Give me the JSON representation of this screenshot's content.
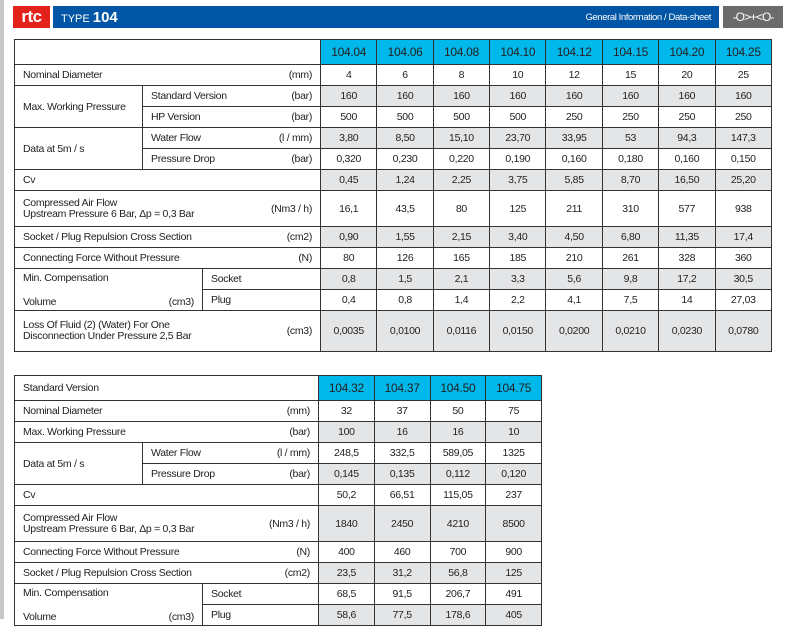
{
  "header": {
    "logo": "rtc",
    "type_label": "TYPE",
    "type_number": "104",
    "section": "General Information / Data-sheet",
    "icon": "coupling-icon",
    "icon_glyph": "-O>+<O-"
  },
  "colors": {
    "brand_blue": "#0055a5",
    "logo_red": "#e3221b",
    "header_cyan": "#00b8ea",
    "shade": "#e4e5e7"
  },
  "table1": {
    "title": "",
    "columns": [
      "104.04",
      "104.06",
      "104.08",
      "104.10",
      "104.12",
      "104.15",
      "104.20",
      "104.25"
    ],
    "rows": [
      {
        "label": "Nominal Diameter",
        "unit": "(mm)",
        "values": [
          "4",
          "6",
          "8",
          "10",
          "12",
          "15",
          "20",
          "25"
        ],
        "shaded": false
      },
      {
        "group": "Max. Working Pressure",
        "sub": "Standard Version",
        "unit": "(bar)",
        "values": [
          "160",
          "160",
          "160",
          "160",
          "160",
          "160",
          "160",
          "160"
        ],
        "shaded": true
      },
      {
        "group": "Max. Working Pressure",
        "sub": "HP Version",
        "unit": "(bar)",
        "values": [
          "500",
          "500",
          "500",
          "500",
          "250",
          "250",
          "250",
          "250"
        ],
        "shaded": false
      },
      {
        "group": "Data at 5m / s",
        "sub": "Water Flow",
        "unit": "(l / mm)",
        "values": [
          "3,80",
          "8,50",
          "15,10",
          "23,70",
          "33,95",
          "53",
          "94,3",
          "147,3"
        ],
        "shaded": true
      },
      {
        "group": "Data at 5m / s",
        "sub": "Pressure Drop",
        "unit": "(bar)",
        "values": [
          "0,320",
          "0,230",
          "0,220",
          "0,190",
          "0,160",
          "0,180",
          "0,160",
          "0,150"
        ],
        "shaded": false
      },
      {
        "label": "Cv",
        "unit": "",
        "values": [
          "0,45",
          "1,24",
          "2,25",
          "3,75",
          "5,85",
          "8,70",
          "16,50",
          "25,20"
        ],
        "shaded": true
      },
      {
        "label": "Compressed Air Flow",
        "label2": "Upstream Pressure 6 Bar, Δp = 0,3 Bar",
        "unit": "(Nm3 / h)",
        "values": [
          "16,1",
          "43,5",
          "80",
          "125",
          "211",
          "310",
          "577",
          "938"
        ],
        "shaded": false,
        "tall": true
      },
      {
        "label": "Socket / Plug Repulsion Cross Section",
        "unit": "(cm2)",
        "values": [
          "0,90",
          "1,55",
          "2,15",
          "3,40",
          "4,50",
          "6,80",
          "11,35",
          "17,4"
        ],
        "shaded": true
      },
      {
        "label": "Connecting Force Without Pressure",
        "unit": "(N)",
        "values": [
          "80",
          "126",
          "165",
          "185",
          "210",
          "261",
          "328",
          "360"
        ],
        "shaded": false
      },
      {
        "wide": "Min. Compensation",
        "wide2": "Volume",
        "unit": "(cm3)",
        "sub": "Socket",
        "values": [
          "0,8",
          "1,5",
          "2,1",
          "3,3",
          "5,6",
          "9,8",
          "17,2",
          "30,5"
        ],
        "shaded": true
      },
      {
        "wide": "Min. Compensation",
        "wide2": "Volume",
        "unit": "(cm3)",
        "sub": "Plug",
        "values": [
          "0,4",
          "0,8",
          "1,4",
          "2,2",
          "4,1",
          "7,5",
          "14",
          "27,03"
        ],
        "shaded": false
      },
      {
        "label": "Loss Of Fluid (2) (Water) For One",
        "label2": "Disconnection Under Pressure 2,5 Bar",
        "unit": "(cm3)",
        "values": [
          "0,0035",
          "0,0100",
          "0,0116",
          "0,0150",
          "0,0200",
          "0,0210",
          "0,0230",
          "0,0780"
        ],
        "shaded": true,
        "tall2": true
      }
    ]
  },
  "table2": {
    "title": "Standard Version",
    "columns": [
      "104.32",
      "104.37",
      "104.50",
      "104.75"
    ],
    "rows": [
      {
        "label": "Nominal Diameter",
        "unit": "(mm)",
        "values": [
          "32",
          "37",
          "50",
          "75"
        ],
        "shaded": false
      },
      {
        "label": "Max. Working Pressure",
        "unit": "(bar)",
        "values": [
          "100",
          "16",
          "16",
          "10"
        ],
        "shaded": true
      },
      {
        "group": "Data at 5m / s",
        "sub": "Water Flow",
        "unit": "(l / mm)",
        "values": [
          "248,5",
          "332,5",
          "589,05",
          "1325"
        ],
        "shaded": false
      },
      {
        "group": "Data at 5m / s",
        "sub": "Pressure Drop",
        "unit": "(bar)",
        "values": [
          "0,145",
          "0,135",
          "0,112",
          "0,120"
        ],
        "shaded": true
      },
      {
        "label": "Cv",
        "unit": "",
        "values": [
          "50,2",
          "66,51",
          "115,05",
          "237"
        ],
        "shaded": false
      },
      {
        "label": "Compressed Air Flow",
        "label2": "Upstream Pressure 6 Bar, Δp = 0,3 Bar",
        "unit": "(Nm3 / h)",
        "values": [
          "1840",
          "2450",
          "4210",
          "8500"
        ],
        "shaded": true,
        "tall": true
      },
      {
        "label": "Connecting Force Without Pressure",
        "unit": "(N)",
        "values": [
          "400",
          "460",
          "700",
          "900"
        ],
        "shaded": false
      },
      {
        "label": "Socket / Plug Repulsion Cross Section",
        "unit": "(cm2)",
        "values": [
          "23,5",
          "31,2",
          "56,8",
          "125"
        ],
        "shaded": true
      },
      {
        "wide": "Min. Compensation",
        "wide2": "Volume",
        "unit": "(cm3)",
        "sub": "Socket",
        "values": [
          "68,5",
          "91,5",
          "206,7",
          "491"
        ],
        "shaded": false
      },
      {
        "wide": "Min. Compensation",
        "wide2": "Volume",
        "unit": "(cm3)",
        "sub": "Plug",
        "values": [
          "58,6",
          "77,5",
          "178,6",
          "405"
        ],
        "shaded": true
      }
    ]
  }
}
